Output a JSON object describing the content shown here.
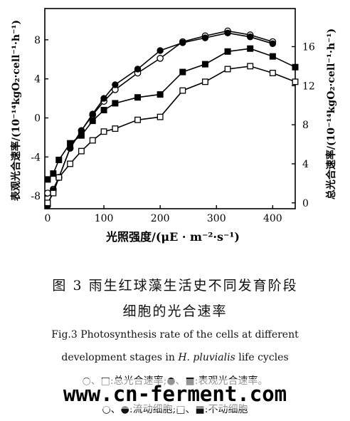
{
  "chart_data": {
    "type": "line",
    "xlabel": "光照强度/(μE · m⁻²·s⁻¹)",
    "ylabel_left": "表观光合速率/(10⁻¹⁴kgO₂·cell⁻¹·h⁻¹)",
    "ylabel_right": "总光合速率/(10⁻¹⁴kgO₂·cell⁻¹·h⁻¹)",
    "xlim": [
      -5,
      440
    ],
    "ylim_left": [
      -9.3,
      11.2
    ],
    "ylim_right": [
      -0.6,
      19.9
    ],
    "x_ticks": [
      "0",
      "100",
      "200",
      "300",
      "400"
    ],
    "y_left_ticks": [
      "-8",
      "-4",
      "0",
      "4",
      "8"
    ],
    "y_right_ticks": [
      "0",
      "4",
      "8",
      "12",
      "16"
    ],
    "series": [
      {
        "marker": "open-circle",
        "axis": "right",
        "line_color": "#000000",
        "points": [
          [
            0,
            1.0
          ],
          [
            10,
            1.4
          ],
          [
            20,
            2.6
          ],
          [
            40,
            5.6
          ],
          [
            60,
            7.4
          ],
          [
            80,
            9.0
          ],
          [
            100,
            10.4
          ],
          [
            120,
            11.6
          ],
          [
            160,
            13.3
          ],
          [
            200,
            14.8
          ],
          [
            240,
            16.5
          ],
          [
            280,
            17.1
          ],
          [
            320,
            17.6
          ],
          [
            360,
            17.2
          ],
          [
            400,
            16.5
          ]
        ]
      },
      {
        "marker": "filled-circle",
        "axis": "left",
        "line_color": "#000000",
        "points": [
          [
            0,
            -9.0
          ],
          [
            10,
            -7.4
          ],
          [
            20,
            -6.1
          ],
          [
            40,
            -3.1
          ],
          [
            60,
            -1.3
          ],
          [
            80,
            0.4
          ],
          [
            100,
            2.0
          ],
          [
            120,
            3.4
          ],
          [
            160,
            5.0
          ],
          [
            200,
            6.9
          ],
          [
            240,
            7.7
          ],
          [
            280,
            8.2
          ],
          [
            320,
            8.7
          ],
          [
            360,
            8.3
          ],
          [
            400,
            7.6
          ]
        ]
      },
      {
        "marker": "filled-square",
        "axis": "left",
        "line_color": "#000000",
        "points": [
          [
            0,
            -6.3
          ],
          [
            10,
            -5.7
          ],
          [
            20,
            -4.3
          ],
          [
            40,
            -2.6
          ],
          [
            60,
            -1.8
          ],
          [
            80,
            -0.3
          ],
          [
            100,
            0.8
          ],
          [
            120,
            1.5
          ],
          [
            160,
            2.1
          ],
          [
            200,
            2.4
          ],
          [
            240,
            4.7
          ],
          [
            280,
            5.5
          ],
          [
            320,
            6.8
          ],
          [
            360,
            7.1
          ],
          [
            400,
            6.3
          ],
          [
            440,
            5.2
          ]
        ]
      },
      {
        "marker": "open-square",
        "axis": "right",
        "line_color": "#000000",
        "points": [
          [
            0,
            0.0
          ],
          [
            10,
            1.0
          ],
          [
            20,
            2.6
          ],
          [
            40,
            4.0
          ],
          [
            60,
            5.3
          ],
          [
            80,
            6.4
          ],
          [
            100,
            7.3
          ],
          [
            120,
            7.6
          ],
          [
            160,
            8.5
          ],
          [
            200,
            8.8
          ],
          [
            240,
            11.5
          ],
          [
            280,
            12.4
          ],
          [
            320,
            13.7
          ],
          [
            360,
            14.0
          ],
          [
            400,
            13.3
          ],
          [
            440,
            12.4
          ]
        ]
      }
    ],
    "caption": {
      "cn_line1": "图 3    雨生红球藻生活史不同发育阶段",
      "cn_line2": "细胞的光合速率",
      "en_line1": "Fig.3    Photosynthesis rate of the cells at different",
      "en_line2_a": "development stages in ",
      "en_line2_species": "H. pluvialis",
      "en_line2_b": " life cycles",
      "legend_line1": "○、□:总光合速率;●、■:表观光合速率。",
      "legend_line2": "○、●:流动细胞;□、■:不动细胞"
    }
  },
  "watermark": "www.cn-ferment.com"
}
